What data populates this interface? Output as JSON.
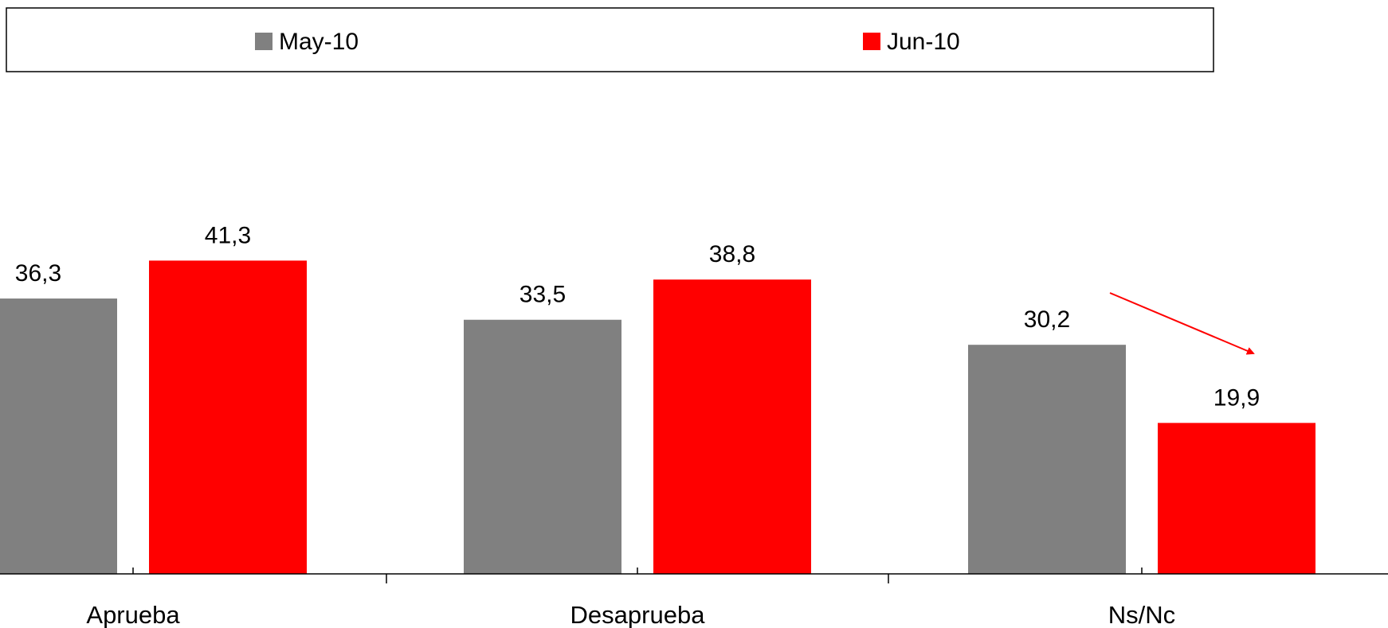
{
  "chart_data": {
    "type": "bar",
    "title": "",
    "xlabel": "",
    "ylabel": "",
    "ylim": [
      0,
      58
    ],
    "grid": false,
    "legend_position": "top",
    "categories": [
      "Aprueba",
      "Desaprueba",
      "Ns/Nc"
    ],
    "series": [
      {
        "name": "May-10",
        "color": "#808080",
        "values": [
          36.3,
          33.5,
          30.2
        ],
        "labels": [
          "36,3",
          "33,5",
          "30,2"
        ]
      },
      {
        "name": "Jun-10",
        "color": "#ff0000",
        "values": [
          41.3,
          38.8,
          19.9
        ],
        "labels": [
          "41,3",
          "38,8",
          "19,9"
        ]
      }
    ],
    "annotations": [
      {
        "type": "arrow",
        "from_series": "May-10",
        "to_series": "Jun-10",
        "category": "Ns/Nc",
        "color": "#ff0000"
      }
    ]
  }
}
